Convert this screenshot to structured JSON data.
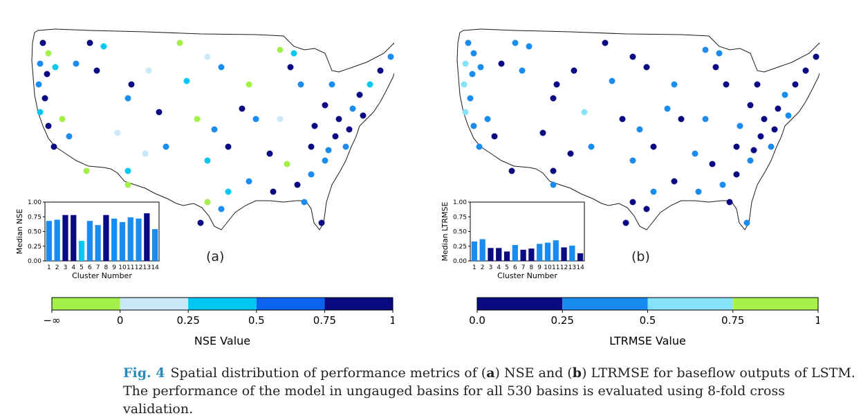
{
  "panel_a": {
    "label": "(a)",
    "colorbar_ticks": [
      "−∞",
      "0",
      "0.25",
      "0.5",
      "0.75",
      "1"
    ],
    "colorbar_colors": [
      "#a4f04a",
      "#c9e8f8",
      "#00c8f0",
      "#0a64f0",
      "#0a0a82"
    ],
    "colorbar_label": "NSE Value",
    "inset": {
      "ylabel": "Median NSE",
      "xlabel": "Cluster Number",
      "yticks": [
        "0.00",
        "0.25",
        "0.50",
        "0.75",
        "1.00"
      ]
    }
  },
  "panel_b": {
    "label": "(b)",
    "colorbar_ticks": [
      "0.0",
      "0.25",
      "0.5",
      "0.75",
      "1"
    ],
    "colorbar_colors": [
      "#0a0a82",
      "#1a8cf0",
      "#86e2f8",
      "#a8f04a"
    ],
    "colorbar_label": "LTRMSE Value",
    "inset": {
      "ylabel": "Median LTRMSE",
      "xlabel": "Cluster Number",
      "yticks": [
        "0.00",
        "0.25",
        "0.50",
        "0.75",
        "1.00"
      ]
    }
  },
  "chart_data": [
    {
      "type": "bar",
      "categories": [
        "1",
        "2",
        "3",
        "4",
        "5",
        "6",
        "7",
        "8",
        "9",
        "10",
        "11",
        "12",
        "13",
        "14"
      ],
      "values": [
        0.68,
        0.7,
        0.78,
        0.78,
        0.34,
        0.68,
        0.61,
        0.78,
        0.72,
        0.66,
        0.74,
        0.72,
        0.81,
        0.54
      ],
      "bar_colors": [
        "#1a8cf0",
        "#1a8cf0",
        "#0a0a82",
        "#0a0a82",
        "#00c8f0",
        "#1a8cf0",
        "#1a8cf0",
        "#0a0a82",
        "#1a8cf0",
        "#1a8cf0",
        "#1a8cf0",
        "#1a8cf0",
        "#0a0a82",
        "#1a8cf0"
      ],
      "xlabel": "Cluster Number",
      "ylabel": "Median NSE",
      "ylim": [
        0,
        1
      ]
    },
    {
      "type": "bar",
      "categories": [
        "1",
        "2",
        "3",
        "4",
        "5",
        "6",
        "7",
        "8",
        "9",
        "10",
        "11",
        "12",
        "13",
        "14"
      ],
      "values": [
        0.33,
        0.37,
        0.22,
        0.22,
        0.16,
        0.27,
        0.19,
        0.21,
        0.29,
        0.31,
        0.35,
        0.23,
        0.26,
        0.13
      ],
      "bar_colors": [
        "#1a8cf0",
        "#1a8cf0",
        "#0a0a82",
        "#0a0a82",
        "#0a0a82",
        "#1a8cf0",
        "#0a0a82",
        "#0a0a82",
        "#1a8cf0",
        "#1a8cf0",
        "#1a8cf0",
        "#0a0a82",
        "#1a8cf0",
        "#0a0a82"
      ],
      "xlabel": "Cluster Number",
      "ylabel": "Median LTRMSE",
      "ylim": [
        0,
        1
      ]
    }
  ],
  "caption": {
    "fig_label": "Fig. 4",
    "part1": "Spatial distribution of performance metrics of (",
    "a": "a",
    "part2": ") NSE and (",
    "b": "b",
    "part3": ") LTRMSE for baseflow outputs of LSTM.",
    "line2": "The performance of the model in ungauged basins for all 530 basins is evaluated using 8-fold cross validation."
  }
}
